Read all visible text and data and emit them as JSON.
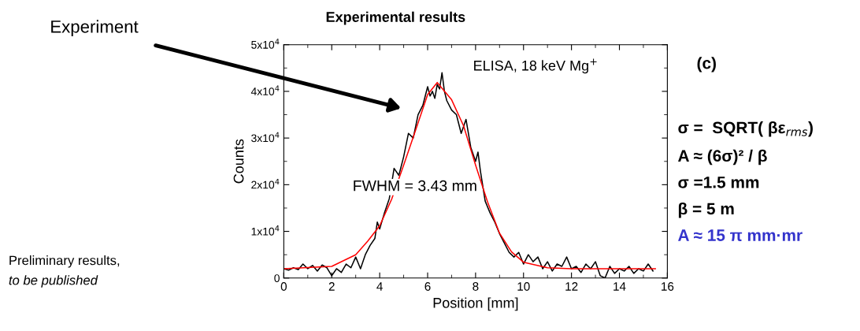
{
  "chart_data": {
    "type": "line",
    "title": "Experimental results",
    "xlabel": "Position [mm]",
    "ylabel": "Counts",
    "series": [
      {
        "color": "#000000",
        "x": [
          0.0,
          0.2,
          0.4,
          0.6,
          0.8,
          1.0,
          1.2,
          1.4,
          1.6,
          1.8,
          2.0,
          2.2,
          2.4,
          2.6,
          2.8,
          3.0,
          3.2,
          3.4,
          3.6,
          3.8,
          3.9,
          4.0,
          4.2,
          4.4,
          4.6,
          4.8,
          5.0,
          5.2,
          5.4,
          5.6,
          5.8,
          6.0,
          6.1,
          6.2,
          6.3,
          6.4,
          6.5,
          6.6,
          6.7,
          6.8,
          7.0,
          7.2,
          7.4,
          7.6,
          7.8,
          8.0,
          8.1,
          8.2,
          8.4,
          8.6,
          8.8,
          9.0,
          9.2,
          9.4,
          9.6,
          9.8,
          10.0,
          10.2,
          10.4,
          10.6,
          10.8,
          11.0,
          11.2,
          11.4,
          11.6,
          11.8,
          12.0,
          12.2,
          12.4,
          12.6,
          12.8,
          13.0,
          13.2,
          13.4,
          13.6,
          13.8,
          14.0,
          14.2,
          14.4,
          14.6,
          14.8,
          15.0,
          15.2,
          15.4
        ],
        "values": [
          2000,
          1700,
          2200,
          1800,
          3000,
          2000,
          2700,
          1500,
          2800,
          2200,
          500,
          2000,
          1200,
          3000,
          2200,
          4500,
          2000,
          5000,
          7000,
          8500,
          12000,
          10500,
          14000,
          17000,
          23500,
          22000,
          26000,
          31000,
          30000,
          35000,
          37000,
          41000,
          39000,
          40000,
          38500,
          41500,
          40500,
          44000,
          40000,
          38000,
          36000,
          35000,
          31000,
          34000,
          28000,
          25000,
          27000,
          23000,
          16500,
          14000,
          12000,
          9500,
          7500,
          5500,
          4500,
          5500,
          3000,
          5000,
          3500,
          4500,
          2000,
          3500,
          1500,
          3000,
          2500,
          4500,
          2000,
          2500,
          1200,
          3000,
          2000,
          3500,
          500,
          0,
          2500,
          1000,
          2000,
          1500,
          2500,
          1000,
          2000,
          1500,
          3000,
          1500
        ]
      },
      {
        "color": "#ff0000",
        "x": [
          0,
          2,
          3,
          3.5,
          4,
          4.5,
          5,
          5.5,
          6,
          6.4,
          7,
          7.5,
          8,
          8.5,
          9,
          9.5,
          10,
          11,
          12,
          15.5
        ],
        "values": [
          2000,
          2500,
          5000,
          7900,
          11200,
          16900,
          24200,
          31700,
          39300,
          41900,
          38200,
          32600,
          24200,
          16300,
          9600,
          5600,
          3400,
          2200,
          2000,
          2000
        ]
      }
    ],
    "xlim": [
      0,
      16
    ],
    "xticks": [
      0,
      2,
      4,
      6,
      8,
      10,
      12,
      14,
      16
    ],
    "ylim": [
      0,
      50000
    ],
    "yticks": [
      0,
      {
        "value": 10000,
        "label": "1x10$^{4}$"
      },
      {
        "value": 20000,
        "label": "2x10$^{4}$"
      },
      {
        "value": 30000,
        "label": "3x10$^{4}$"
      },
      {
        "value": 40000,
        "label": "4x10$^{4}$"
      },
      {
        "value": 50000,
        "label": "5x10$^{4}$"
      }
    ],
    "grid": false,
    "legend": false,
    "marker": "none",
    "line_style": "solid",
    "annotations": [
      "Experiment",
      "ELISA, 18 keV Mg$^{+}$",
      "FWHM = 3.43 mm",
      "(c)",
      "σ =  SQRT( βε$_{rms}$)",
      "A ≈ (6σ)² / β",
      "σ =1.5 mm",
      "β = 5 m",
      "A ≈ 15 π mm·mr",
      "Preliminary results,",
      "to be published"
    ]
  }
}
